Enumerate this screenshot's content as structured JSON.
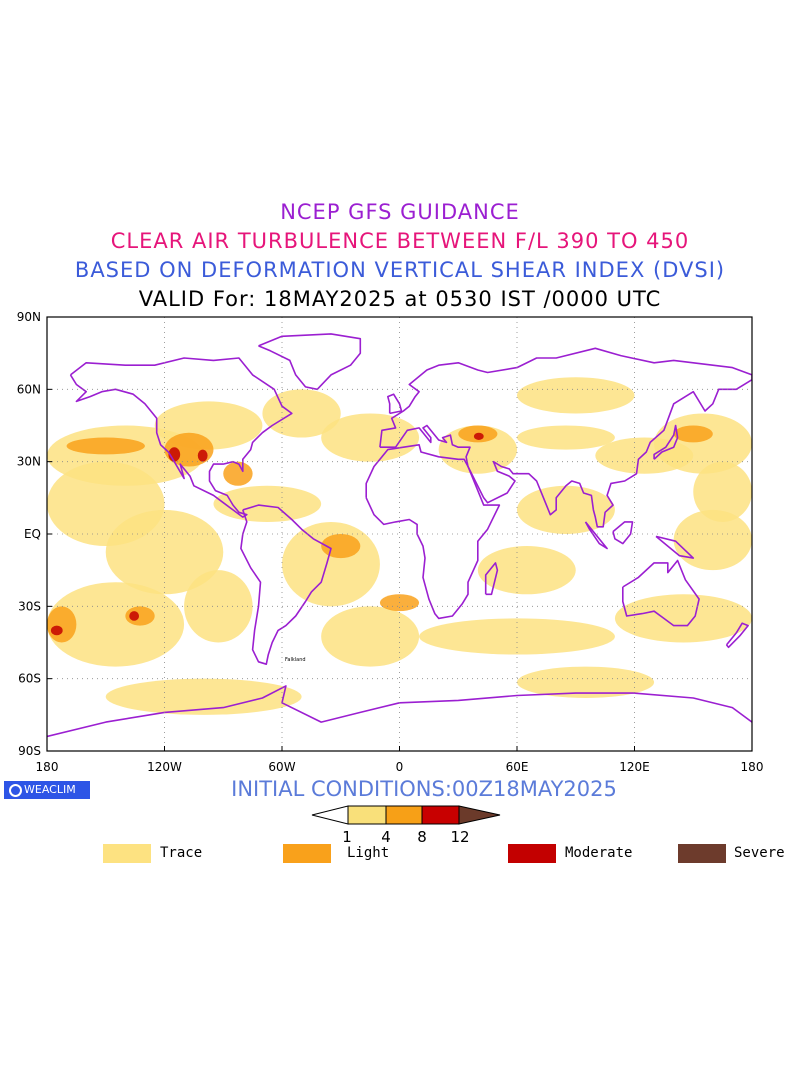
{
  "titles": {
    "line1": "NCEP GFS GUIDANCE",
    "line2": "CLEAR AIR TURBULENCE BETWEEN F/L 390 TO 450",
    "line3": "BASED ON DEFORMATION VERTICAL SHEAR INDEX (DVSI)",
    "line4": "VALID For: 18MAY2025 at 0530 IST /0000 UTC"
  },
  "map": {
    "lat_labels": [
      "90N",
      "60N",
      "30N",
      "EQ",
      "30S",
      "60S",
      "90S"
    ],
    "lon_labels": [
      "180",
      "120W",
      "60W",
      "0",
      "60E",
      "120E",
      "180"
    ],
    "lat_values": [
      90,
      60,
      30,
      0,
      -30,
      -60,
      -90
    ],
    "lon_values": [
      -180,
      -120,
      -60,
      0,
      60,
      120,
      180
    ],
    "lon_range": [
      -180,
      180
    ],
    "lat_range": [
      -90,
      90
    ],
    "grid": true,
    "station_label_falkland": "Falkland"
  },
  "brand": {
    "name": "WEACLIM"
  },
  "initial_conditions": "INITIAL CONDITIONS:00Z18MAY2025",
  "colorbar": {
    "ticks": [
      "1",
      "4",
      "8",
      "12"
    ],
    "colors": [
      "#ffffff",
      "#f9e07a",
      "#f7a017",
      "#c80000",
      "#6b3a2a"
    ]
  },
  "legend": [
    {
      "label": "Trace",
      "color": "#fde281"
    },
    {
      "label": "Light",
      "color": "#f9a11b"
    },
    {
      "label": "Moderate",
      "color": "#c30000"
    },
    {
      "label": "Severe",
      "color": "#6d3b2c"
    }
  ],
  "colors": {
    "coastline": "#9b1fd1",
    "trace": "#fde281",
    "light": "#f9a11b",
    "moderate": "#c30000"
  }
}
